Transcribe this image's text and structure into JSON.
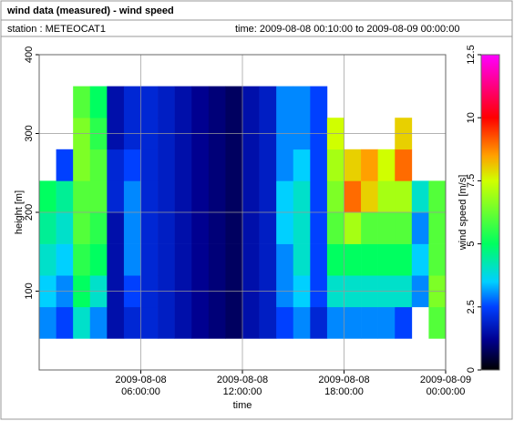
{
  "header": {
    "title": "wind data (measured) - wind speed",
    "station": "station : METEOCAT1",
    "time": "time: 2009-08-08 00:10:00 to 2009-08-09 00:00:00"
  },
  "chart_data": {
    "type": "heatmap",
    "x_label": "time",
    "y_label": "height [m]",
    "colorbar_label": "wind speed [m/s]",
    "xlim": [
      0,
      24
    ],
    "xticks": [
      {
        "value": 6,
        "label": "2009-08-08 06:00:00"
      },
      {
        "value": 12,
        "label": "2009-08-08 12:00:00"
      },
      {
        "value": 18,
        "label": "2009-08-08 18:00:00"
      },
      {
        "value": 24,
        "label": "2009-08-09 00:00:00"
      }
    ],
    "ylim": [
      0,
      400
    ],
    "yticks": [
      100,
      200,
      300,
      400
    ],
    "xbins": [
      0,
      1,
      2,
      3,
      4,
      5,
      6,
      7,
      8,
      9,
      10,
      11,
      12,
      13,
      14,
      15,
      16,
      17,
      18,
      19,
      20,
      21,
      22,
      23,
      24
    ],
    "ybins": [
      40,
      80,
      120,
      160,
      200,
      240,
      280,
      320,
      360
    ],
    "values": [
      [
        3,
        2.5,
        4,
        3,
        1.5,
        2,
        2,
        1.8,
        1.5,
        1.2,
        1,
        0.8,
        1.5,
        1.8,
        2.5,
        3,
        2,
        3,
        3,
        3,
        3,
        2.5,
        null,
        6
      ],
      [
        3.5,
        3,
        5,
        4,
        1.5,
        2.5,
        2,
        1.8,
        1.5,
        1.2,
        1,
        0.8,
        1.5,
        1.8,
        3,
        3.5,
        2.5,
        4,
        4,
        4,
        4,
        4,
        3,
        6.5
      ],
      [
        4,
        3.5,
        5.5,
        5,
        1.5,
        3,
        2,
        1.8,
        1.5,
        1.2,
        1,
        0.8,
        1.5,
        1.8,
        3,
        4,
        2.5,
        5,
        5,
        5,
        5,
        5,
        3.5,
        6
      ],
      [
        4.5,
        4,
        6,
        5.5,
        1.5,
        3,
        2,
        1.8,
        1.5,
        1.2,
        1,
        0.8,
        1.5,
        1.8,
        3.5,
        4,
        2.5,
        6,
        7,
        6,
        6,
        6,
        3,
        6
      ],
      [
        5,
        4.5,
        6,
        6,
        2,
        3,
        2,
        1.8,
        1.5,
        1.2,
        1,
        0.8,
        1.5,
        1.8,
        3.5,
        4,
        2.5,
        6.5,
        9,
        8,
        7,
        7,
        4,
        6
      ],
      [
        null,
        2.5,
        6.5,
        6,
        2,
        2.5,
        2,
        1.8,
        1.5,
        1.2,
        1,
        0.8,
        1.5,
        1.8,
        3,
        3.5,
        2.5,
        7,
        8,
        8.5,
        7.5,
        9,
        null,
        null
      ],
      [
        null,
        null,
        6.5,
        5.5,
        1.5,
        2,
        2,
        1.8,
        1.5,
        1.2,
        1,
        0.8,
        1.5,
        1.8,
        3,
        3,
        2.5,
        7.5,
        null,
        null,
        null,
        8,
        null,
        null
      ],
      [
        null,
        null,
        6,
        5,
        1.5,
        2,
        2,
        1.8,
        1.5,
        1.2,
        1,
        0.8,
        1.5,
        1.8,
        3,
        3,
        2.5,
        null,
        null,
        null,
        null,
        null,
        null,
        null
      ]
    ],
    "clim": [
      0,
      12.5
    ],
    "cticks": [
      0,
      2.5,
      5,
      7.5,
      10,
      12.5
    ],
    "colorscale": [
      [
        0,
        "#000000"
      ],
      [
        1.2,
        "#000090"
      ],
      [
        2.5,
        "#0040ff"
      ],
      [
        3.5,
        "#00d0ff"
      ],
      [
        5,
        "#00ff60"
      ],
      [
        7.5,
        "#d0ff00"
      ],
      [
        8.5,
        "#ffa000"
      ],
      [
        10,
        "#ff0000"
      ],
      [
        12.5,
        "#ff00ff"
      ]
    ],
    "grid": true
  }
}
